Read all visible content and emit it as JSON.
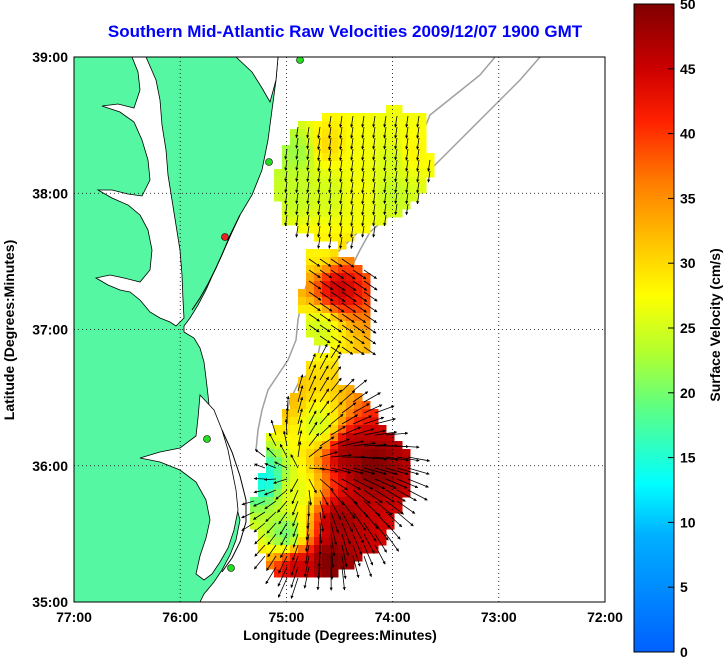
{
  "title": "Southern Mid-Atlantic Raw Velocities 2009/12/07 1900 GMT",
  "x_axis": {
    "label": "Longitude (Degrees:Minutes)",
    "ticks": [
      "77:00",
      "76:00",
      "75:00",
      "74:00",
      "73:00",
      "72:00"
    ]
  },
  "y_axis": {
    "label": "Latitude (Degrees:Minutes)",
    "ticks": [
      "39:00",
      "38:00",
      "37:00",
      "36:00",
      "35:00"
    ]
  },
  "colorbar": {
    "label": "Surface Velocity (cm/s)",
    "ticks": [
      "50",
      "45",
      "40",
      "35",
      "30",
      "25",
      "20",
      "15",
      "10",
      "5",
      "0"
    ],
    "min": 0,
    "max": 50
  },
  "colors": {
    "title": "#0000ff",
    "land": "#55f7a2",
    "coast": "#000000",
    "bathymetry": "#a0a0a0",
    "station": "#22dd22",
    "station_alt": "#ee2222"
  },
  "map": {
    "lon_range": [
      -77,
      -72
    ],
    "lat_range": [
      35,
      39
    ],
    "grid": true
  },
  "chart_data": {
    "type": "heatmap",
    "description_units": "surface velocity cm/s",
    "regions": [
      {
        "name": "north-box",
        "cells": [
          {
            "lon": -74.9,
            "lat": 38.3,
            "v": 22
          },
          {
            "lon": -74.6,
            "lat": 38.35,
            "v": 30
          },
          {
            "lon": -74.3,
            "lat": 38.3,
            "v": 27
          },
          {
            "lon": -74.0,
            "lat": 38.25,
            "v": 25
          },
          {
            "lon": -73.8,
            "lat": 38.3,
            "v": 28
          },
          {
            "lon": -74.9,
            "lat": 38.0,
            "v": 24
          },
          {
            "lon": -74.6,
            "lat": 38.0,
            "v": 25
          },
          {
            "lon": -74.3,
            "lat": 38.0,
            "v": 27
          },
          {
            "lon": -74.0,
            "lat": 38.0,
            "v": 24
          },
          {
            "lon": -74.7,
            "lat": 37.6,
            "v": 28
          },
          {
            "lon": -74.5,
            "lat": 37.3,
            "v": 45
          },
          {
            "lon": -74.7,
            "lat": 37.0,
            "v": 25
          }
        ]
      },
      {
        "name": "south-box",
        "cells": [
          {
            "lon": -75.0,
            "lat": 36.5,
            "v": 32
          },
          {
            "lon": -74.7,
            "lat": 36.3,
            "v": 25
          },
          {
            "lon": -74.4,
            "lat": 36.1,
            "v": 48
          },
          {
            "lon": -74.2,
            "lat": 36.0,
            "v": 50
          },
          {
            "lon": -75.2,
            "lat": 35.9,
            "v": 14
          },
          {
            "lon": -74.9,
            "lat": 35.8,
            "v": 26
          },
          {
            "lon": -74.5,
            "lat": 35.6,
            "v": 48
          },
          {
            "lon": -75.0,
            "lat": 35.5,
            "v": 20
          },
          {
            "lon": -74.6,
            "lat": 35.3,
            "v": 50
          },
          {
            "lon": -74.9,
            "lat": 35.25,
            "v": 45
          }
        ]
      }
    ]
  }
}
